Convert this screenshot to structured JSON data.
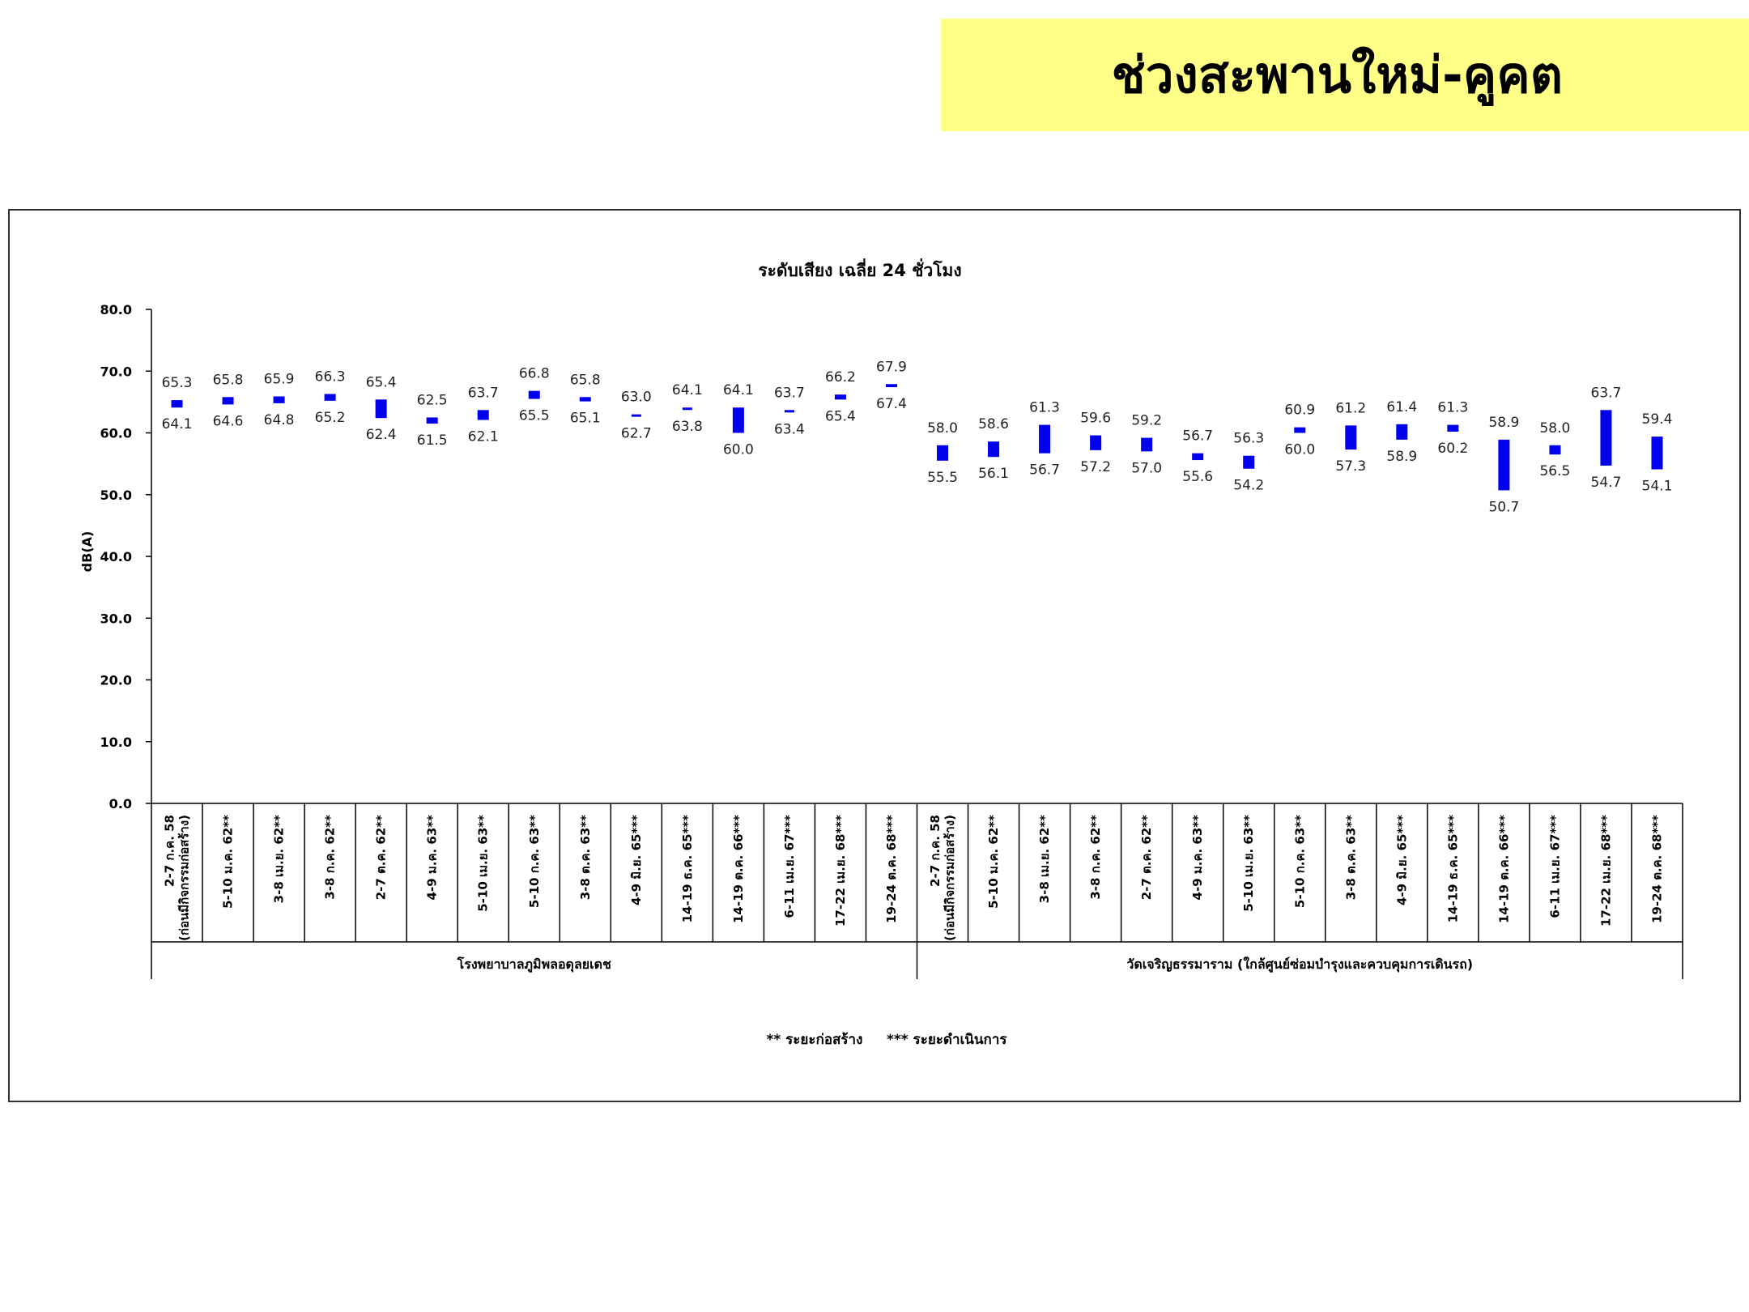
{
  "banner": {
    "title": "ช่วงสะพานใหม่-คูคต",
    "color": "#ffff88"
  },
  "chart_data": {
    "type": "bar",
    "subtype": "floating-range",
    "title": "ระดับเสียง เฉลี่ย 24 ชั่วโมง",
    "ylabel": "dB(A)",
    "ylim": [
      0,
      80
    ],
    "yticks": [
      "0.0",
      "10.0",
      "20.0",
      "30.0",
      "40.0",
      "50.0",
      "60.0",
      "70.0",
      "80.0"
    ],
    "bar_color": "#0000ee",
    "footnote": "** ระยะก่อสร้าง     *** ระยะดำเนินการ",
    "groups": [
      {
        "name": "โรงพยาบาลภูมิพลอดุลยเดช",
        "categories": [
          [
            "2-7 ก.ค. 58",
            "(ก่อนมีกิจกรรมก่อสร้าง)"
          ],
          [
            "5-10 ม.ค. 62**"
          ],
          [
            "3-8 เม.ย. 62**"
          ],
          [
            "3-8 ก.ค. 62**"
          ],
          [
            "2-7 ต.ค. 62**"
          ],
          [
            "4-9 ม.ค. 63**"
          ],
          [
            "5-10 เม.ย. 63**"
          ],
          [
            "5-10 ก.ค. 63**"
          ],
          [
            "3-8 ต.ค. 63**"
          ],
          [
            "4-9 มิ.ย. 65***"
          ],
          [
            "14-19 ธ.ค. 65***"
          ],
          [
            "14-19 ต.ค. 66***"
          ],
          [
            "6-11 เม.ย. 67***"
          ],
          [
            "17-22 เม.ย. 68***"
          ],
          [
            "19-24 ต.ค. 68***"
          ]
        ],
        "max": [
          65.3,
          65.8,
          65.9,
          66.3,
          65.4,
          62.5,
          63.7,
          66.8,
          65.8,
          63.0,
          64.1,
          64.1,
          63.7,
          66.2,
          67.9
        ],
        "min": [
          64.1,
          64.6,
          64.8,
          65.2,
          62.4,
          61.5,
          62.1,
          65.5,
          65.1,
          62.7,
          63.8,
          60.0,
          63.4,
          65.4,
          67.4
        ],
        "max_label": [
          "65.3",
          "65.8",
          "65.9",
          "66.3",
          "65.4",
          "62.5",
          "63.7",
          "66.8",
          "65.8",
          "63.0",
          "64.1",
          "64.1",
          "63.7",
          "66.2",
          "67.9"
        ],
        "min_label": [
          "64.1",
          "64.6",
          "64.8",
          "65.2",
          "62.4",
          "61.5",
          "62.1",
          "65.5",
          "65.1",
          "62.7",
          "63.8",
          "60.0",
          "63.4",
          "65.4",
          "67.4"
        ]
      },
      {
        "name": "วัดเจริญธรรมาราม (ใกล้ศูนย์ซ่อมบำรุงและควบคุมการเดินรถ)",
        "categories": [
          [
            "2-7 ก.ค. 58",
            "(ก่อนมีกิจกรรมก่อสร้าง)"
          ],
          [
            "5-10 ม.ค. 62**"
          ],
          [
            "3-8 เม.ย. 62**"
          ],
          [
            "3-8 ก.ค. 62**"
          ],
          [
            "2-7 ต.ค. 62**"
          ],
          [
            "4-9 ม.ค. 63**"
          ],
          [
            "5-10 เม.ย. 63**"
          ],
          [
            "5-10 ก.ค. 63**"
          ],
          [
            "3-8 ต.ค. 63**"
          ],
          [
            "4-9 มิ.ย. 65***"
          ],
          [
            "14-19 ธ.ค. 65***"
          ],
          [
            "14-19 ต.ค. 66***"
          ],
          [
            "6-11 เม.ย. 67***"
          ],
          [
            "17-22 เม.ย. 68***"
          ],
          [
            "19-24 ต.ค. 68***"
          ]
        ],
        "max": [
          58.0,
          58.6,
          61.3,
          59.6,
          59.2,
          56.7,
          56.3,
          60.9,
          61.2,
          61.4,
          61.3,
          58.9,
          58.0,
          63.7,
          59.4
        ],
        "min": [
          55.5,
          56.1,
          56.7,
          57.2,
          57.0,
          55.6,
          54.2,
          60.0,
          57.3,
          58.9,
          60.2,
          50.7,
          56.5,
          54.7,
          54.1
        ],
        "max_label": [
          "58.0",
          "58.6",
          "61.3",
          "59.6",
          "59.2",
          "56.7",
          "56.3",
          "60.9",
          "61.2",
          "61.4",
          "61.3",
          "58.9",
          "58.0",
          "63.7",
          "59.4"
        ],
        "min_label": [
          "55.5",
          "56.1",
          "56.7",
          "57.2",
          "57.0",
          "55.6",
          "54.2",
          "60.0",
          "57.3",
          "58.9",
          "60.2",
          "50.7",
          "56.5",
          "54.7",
          "54.1"
        ]
      }
    ]
  }
}
